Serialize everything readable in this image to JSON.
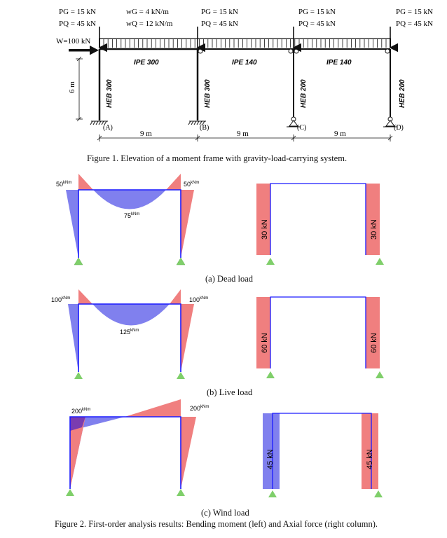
{
  "frame": {
    "loads": {
      "left_pg": "PG = 15 kN",
      "left_pq": "PQ = 45 kN",
      "distributed_wg": "wG = 4 kN/m",
      "distributed_wq": "wQ = 12 kN/m",
      "mid_b_pg": "PG = 15 kN",
      "mid_b_pq": "PQ = 45 kN",
      "mid_c_pg": "PG = 15 kN",
      "mid_c_pq": "PQ = 45 kN",
      "right_pg": "PG = 15 kN",
      "right_pq": "PQ = 45 kN",
      "wind": "W=100 kN"
    },
    "sections": {
      "beam_ab": "IPE 300",
      "beam_bc": "IPE 140",
      "beam_cd": "IPE 140",
      "col_a": "HEB 300",
      "col_b": "HEB 300",
      "col_c": "HEB 200",
      "col_d": "HEB 200"
    },
    "supports": [
      "(A)",
      "(B)",
      "(C)",
      "(D)"
    ],
    "dims": {
      "height": "6 m",
      "span_ab": "9 m",
      "span_bc": "9 m",
      "span_cd": "9 m"
    },
    "caption": "Figure 1. Elevation of a moment frame with gravity-load-carrying system."
  },
  "dead": {
    "m_left": "50",
    "m_right": "50",
    "m_mid": "75",
    "unit_moment": "kNm",
    "n_left": "30 kN",
    "n_right": "30 kN",
    "caption": "(a) Dead load"
  },
  "live": {
    "m_left": "100",
    "m_right": "100",
    "m_mid": "125",
    "unit_moment": "kNm",
    "n_left": "60 kN",
    "n_right": "60 kN",
    "caption": "(b) Live load"
  },
  "wind": {
    "m_left": "200",
    "m_right": "200",
    "unit_moment": "kNm",
    "n_left": "45 kN",
    "n_right": "45 kN",
    "caption": "(c) Wind load"
  },
  "figure2_caption": "Figure 2. First-order analysis results: Bending moment (left) and Axial force (right column).",
  "colors": {
    "positive": "#f07f7f",
    "negative": "#8080ee",
    "overlap": "#7a3cb0",
    "frame": "#1a1aff",
    "support": "#7fcf6a"
  }
}
